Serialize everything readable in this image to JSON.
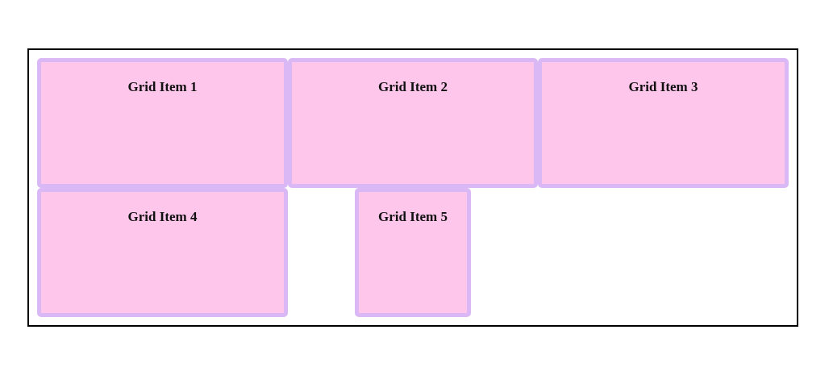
{
  "colors": {
    "item_background": "#fec6ea",
    "item_border": "#d9b8f5",
    "container_border": "#000000"
  },
  "grid": {
    "items": [
      {
        "label": "Grid Item 1"
      },
      {
        "label": "Grid Item 2"
      },
      {
        "label": "Grid Item 3"
      },
      {
        "label": "Grid Item 4"
      },
      {
        "label": "Grid Item 5"
      }
    ]
  }
}
